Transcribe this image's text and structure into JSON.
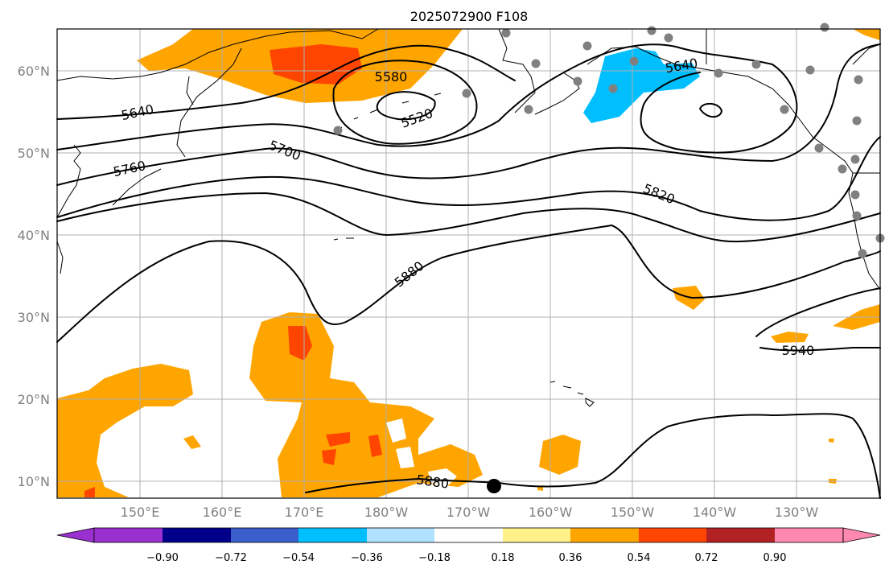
{
  "title": "2025072900 F108",
  "lon_ticks": [
    "150°E",
    "160°E",
    "170°E",
    "180°W",
    "170°W",
    "160°W",
    "150°W",
    "140°W",
    "130°W"
  ],
  "lat_ticks": [
    "60°N",
    "50°N",
    "40°N",
    "30°N",
    "20°N",
    "10°N"
  ],
  "contour_labels": [
    "5520",
    "5580",
    "5640",
    "5640",
    "5700",
    "5760",
    "5820",
    "5880",
    "5880",
    "5940"
  ],
  "colorbar": {
    "ticks": [
      "−0.90",
      "−0.72",
      "−0.54",
      "−0.36",
      "−0.18",
      "0.18",
      "0.36",
      "0.54",
      "0.72",
      "0.90"
    ],
    "colors": [
      "#9b30d0",
      "#00008b",
      "#3a5fcd",
      "#00bfff",
      "#b0e2ff",
      "#ffffff",
      "#fff08a",
      "#ffa500",
      "#ff4500",
      "#b22222",
      "#ff88b0"
    ]
  }
}
